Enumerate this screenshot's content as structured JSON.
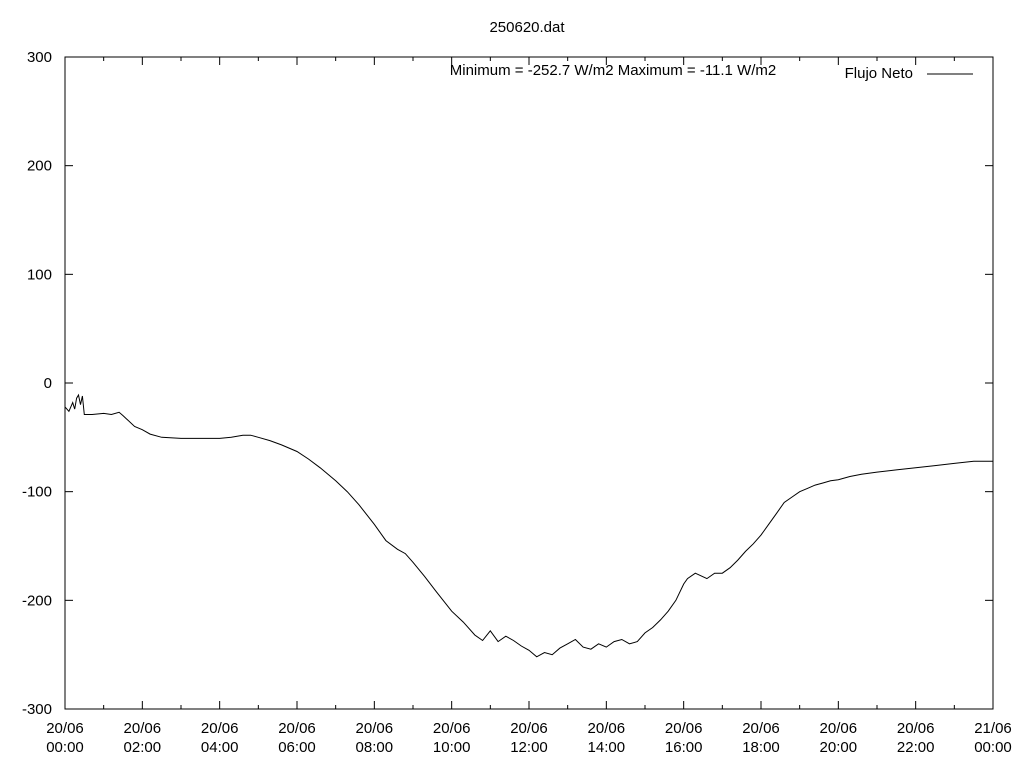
{
  "chart_data": {
    "type": "line",
    "title": "250620.dat",
    "annotation": "Minimum = -252.7 W/m2   Maximum = -11.1 W/m2",
    "legend": {
      "position": "top-right",
      "entries": [
        "Flujo Neto"
      ]
    },
    "xlabel": "",
    "ylabel": "",
    "xlim": [
      0,
      24
    ],
    "ylim": [
      -300,
      300
    ],
    "grid": false,
    "yticks": [
      300,
      200,
      100,
      0,
      -100,
      -200,
      -300
    ],
    "xtick_labels": [
      [
        "20/06",
        "00:00"
      ],
      [
        "20/06",
        "02:00"
      ],
      [
        "20/06",
        "04:00"
      ],
      [
        "20/06",
        "06:00"
      ],
      [
        "20/06",
        "08:00"
      ],
      [
        "20/06",
        "10:00"
      ],
      [
        "20/06",
        "12:00"
      ],
      [
        "20/06",
        "14:00"
      ],
      [
        "20/06",
        "16:00"
      ],
      [
        "20/06",
        "18:00"
      ],
      [
        "20/06",
        "20:00"
      ],
      [
        "20/06",
        "22:00"
      ],
      [
        "21/06",
        "00:00"
      ]
    ],
    "series": [
      {
        "name": "Flujo Neto",
        "color": "#000000",
        "x": [
          0,
          0.1,
          0.2,
          0.25,
          0.3,
          0.35,
          0.4,
          0.45,
          0.5,
          0.7,
          1.0,
          1.2,
          1.4,
          1.5,
          1.8,
          2.0,
          2.2,
          2.5,
          3.0,
          3.5,
          4.0,
          4.3,
          4.6,
          4.8,
          5.0,
          5.3,
          5.6,
          6.0,
          6.3,
          6.6,
          7.0,
          7.3,
          7.6,
          8.0,
          8.3,
          8.6,
          8.8,
          9.0,
          9.3,
          9.6,
          10.0,
          10.3,
          10.6,
          10.8,
          11.0,
          11.2,
          11.4,
          11.6,
          11.8,
          12.0,
          12.2,
          12.4,
          12.6,
          12.8,
          13.0,
          13.2,
          13.4,
          13.6,
          13.8,
          14.0,
          14.2,
          14.4,
          14.6,
          14.8,
          15.0,
          15.2,
          15.4,
          15.6,
          15.8,
          16.0,
          16.1,
          16.3,
          16.6,
          16.8,
          17.0,
          17.2,
          17.4,
          17.6,
          17.8,
          18.0,
          18.2,
          18.4,
          18.6,
          18.8,
          19.0,
          19.2,
          19.4,
          19.6,
          19.8,
          20.0,
          20.3,
          20.6,
          21.0,
          21.5,
          22.0,
          22.5,
          23.0,
          23.5,
          24.0
        ],
        "y": [
          -22,
          -26,
          -18,
          -24,
          -14,
          -11,
          -20,
          -12,
          -29,
          -29,
          -28,
          -29,
          -27,
          -30,
          -40,
          -43,
          -47,
          -50,
          -51,
          -51,
          -51,
          -50,
          -48,
          -48,
          -50,
          -53,
          -57,
          -63,
          -70,
          -78,
          -90,
          -100,
          -112,
          -130,
          -145,
          -153,
          -157,
          -165,
          -178,
          -192,
          -210,
          -220,
          -232,
          -237,
          -228,
          -238,
          -233,
          -237,
          -242,
          -246,
          -252,
          -248,
          -250,
          -244,
          -240,
          -236,
          -243,
          -245,
          -240,
          -243,
          -238,
          -236,
          -240,
          -238,
          -230,
          -225,
          -218,
          -210,
          -200,
          -185,
          -180,
          -175,
          -180,
          -175,
          -175,
          -170,
          -163,
          -155,
          -148,
          -140,
          -130,
          -120,
          -110,
          -105,
          -100,
          -97,
          -94,
          -92,
          -90,
          -89,
          -86,
          -84,
          -82,
          -80,
          -78,
          -76,
          -74,
          -72,
          -72
        ]
      }
    ]
  }
}
